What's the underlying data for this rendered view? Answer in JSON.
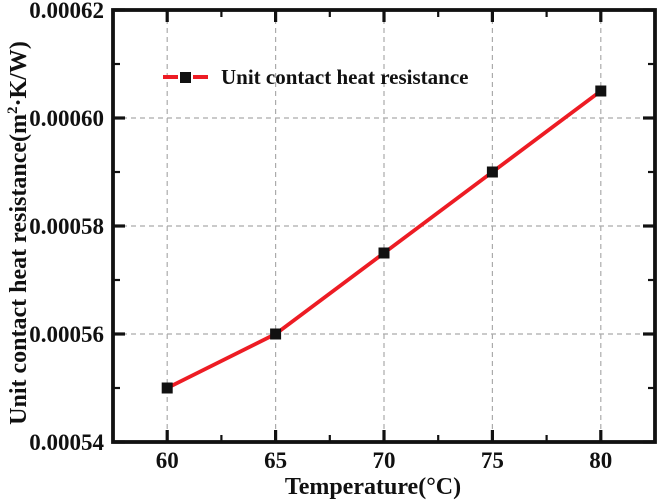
{
  "figure": {
    "background": "#ffffff",
    "text_color": "#111111"
  },
  "chart_data": {
    "type": "line",
    "title": "",
    "xlabel": "Temperature(°C)",
    "ylabel": "Unit contact heat resistance(m²·K/W)",
    "ylabel_parts": {
      "pre": "Unit contact heat resistance(m",
      "sup": "2",
      "post": "·K/W)"
    },
    "x": [
      60,
      65,
      70,
      75,
      80
    ],
    "series": [
      {
        "name": "Unit contact heat resistance",
        "values": [
          0.00055,
          0.00056,
          0.000575,
          0.00059,
          0.000605
        ],
        "line_color": "#ed1c24",
        "marker": "square",
        "marker_color": "#111111"
      }
    ],
    "xlim": [
      57.5,
      82.5
    ],
    "ylim": [
      0.00054,
      0.00062
    ],
    "x_ticks": {
      "major": [
        60,
        65,
        70,
        75,
        80
      ],
      "minor": [
        62.5,
        67.5,
        72.5,
        77.5
      ],
      "labels": [
        "60",
        "65",
        "70",
        "75",
        "80"
      ]
    },
    "y_ticks": {
      "major": [
        0.00054,
        0.00056,
        0.00058,
        0.0006,
        0.00062
      ],
      "minor": [
        0.00055,
        0.00057,
        0.00059,
        0.00061
      ],
      "labels": [
        "0.00054",
        "0.00056",
        "0.00058",
        "0.00060",
        "0.00062"
      ]
    },
    "grid": {
      "show": true,
      "style": "dashed",
      "color": "#ababab"
    },
    "axis_color": "#111111",
    "legend": {
      "label": "Unit contact heat resistance",
      "position": "inside-top-left"
    }
  }
}
